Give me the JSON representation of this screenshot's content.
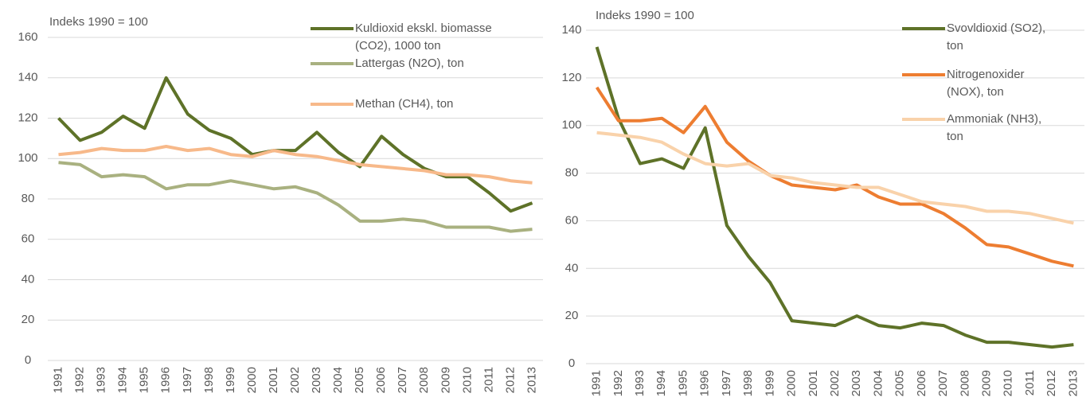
{
  "chart_data": [
    {
      "type": "line",
      "annotation": "Indeks 1990 = 100",
      "categories": [
        "1991",
        "1992",
        "1993",
        "1994",
        "1995",
        "1996",
        "1997",
        "1998",
        "1999",
        "2000",
        "2001",
        "2002",
        "2003",
        "2004",
        "2005",
        "2006",
        "2007",
        "2008",
        "2009",
        "2010",
        "2011",
        "2012",
        "2013"
      ],
      "ylim": [
        0,
        160
      ],
      "yticks": [
        0,
        20,
        40,
        60,
        80,
        100,
        120,
        140,
        160
      ],
      "grid": true,
      "series": [
        {
          "name": "Kuldioxid ekskl. biomasse (CO2), 1000 ton",
          "color": "#5e7228",
          "values": [
            120,
            109,
            113,
            121,
            115,
            140,
            122,
            114,
            110,
            102,
            104,
            104,
            113,
            103,
            96,
            111,
            102,
            95,
            91,
            91,
            83,
            74,
            78
          ]
        },
        {
          "name": "Lattergas (N2O), ton",
          "color": "#a9b180",
          "values": [
            98,
            97,
            91,
            92,
            91,
            85,
            87,
            87,
            89,
            87,
            85,
            86,
            83,
            77,
            69,
            69,
            70,
            69,
            66,
            66,
            66,
            64,
            65
          ]
        },
        {
          "name": "Methan (CH4), ton",
          "color": "#f7b98a",
          "values": [
            102,
            103,
            105,
            104,
            104,
            106,
            104,
            105,
            102,
            101,
            104,
            102,
            101,
            99,
            97,
            96,
            95,
            94,
            92,
            92,
            91,
            89,
            88
          ]
        }
      ]
    },
    {
      "type": "line",
      "annotation": "Indeks 1990 = 100",
      "categories": [
        "1991",
        "1992",
        "1993",
        "1994",
        "1995",
        "1996",
        "1997",
        "1998",
        "1999",
        "2000",
        "2001",
        "2002",
        "2003",
        "2004",
        "2005",
        "2006",
        "2007",
        "2008",
        "2009",
        "2010",
        "2011",
        "2012",
        "2013"
      ],
      "ylim": [
        0,
        140
      ],
      "yticks": [
        0,
        20,
        40,
        60,
        80,
        100,
        120,
        140
      ],
      "grid": true,
      "series": [
        {
          "name": "Svovldioxid (SO2), ton",
          "color": "#5e7228",
          "values": [
            133,
            103,
            84,
            86,
            82,
            99,
            58,
            45,
            34,
            18,
            17,
            16,
            20,
            16,
            15,
            17,
            16,
            12,
            9,
            9,
            8,
            7,
            8
          ]
        },
        {
          "name": "Nitrogenoxider (NOX), ton",
          "color": "#ed7d31",
          "values": [
            116,
            102,
            102,
            103,
            97,
            108,
            93,
            85,
            79,
            75,
            74,
            73,
            75,
            70,
            67,
            67,
            63,
            57,
            50,
            49,
            46,
            43,
            41
          ]
        },
        {
          "name": "Ammoniak (NH3), ton",
          "color": "#f9d2aa",
          "values": [
            97,
            96,
            95,
            93,
            88,
            84,
            83,
            84,
            79,
            78,
            76,
            75,
            74,
            74,
            71,
            68,
            67,
            66,
            64,
            64,
            63,
            61,
            59
          ]
        }
      ]
    }
  ]
}
